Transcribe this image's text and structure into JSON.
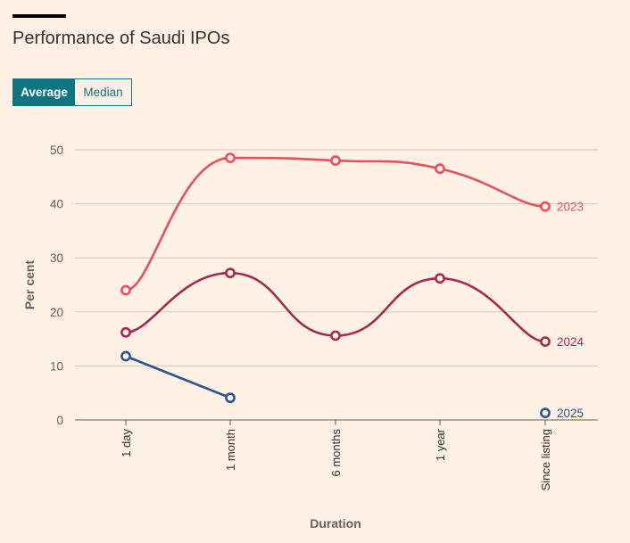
{
  "header": {
    "title": "Performance of Saudi IPOs"
  },
  "toggle": {
    "options": [
      "Average",
      "Median"
    ],
    "selected": "Average"
  },
  "chart_data": {
    "type": "line",
    "title": "Performance of Saudi IPOs",
    "xlabel": "Duration",
    "ylabel": "Per cent",
    "categories": [
      "1 day",
      "1 month",
      "6 months",
      "1 year",
      "Since listing"
    ],
    "ylim": [
      0,
      50
    ],
    "yticks": [
      0,
      10,
      20,
      30,
      40,
      50
    ],
    "grid": true,
    "colors": {
      "2023": "#e8505b",
      "2024": "#a7294f",
      "2025": "#2c5592",
      "grid": "#cec6b9",
      "axis": "#66605c"
    },
    "series": [
      {
        "name": "2023",
        "values": [
          24.0,
          48.5,
          48.0,
          46.5,
          39.5
        ]
      },
      {
        "name": "2024",
        "values": [
          16.2,
          27.2,
          15.6,
          26.2,
          14.5
        ]
      },
      {
        "name": "2025",
        "values": [
          11.8,
          4.1,
          null,
          null,
          1.3
        ]
      }
    ]
  }
}
